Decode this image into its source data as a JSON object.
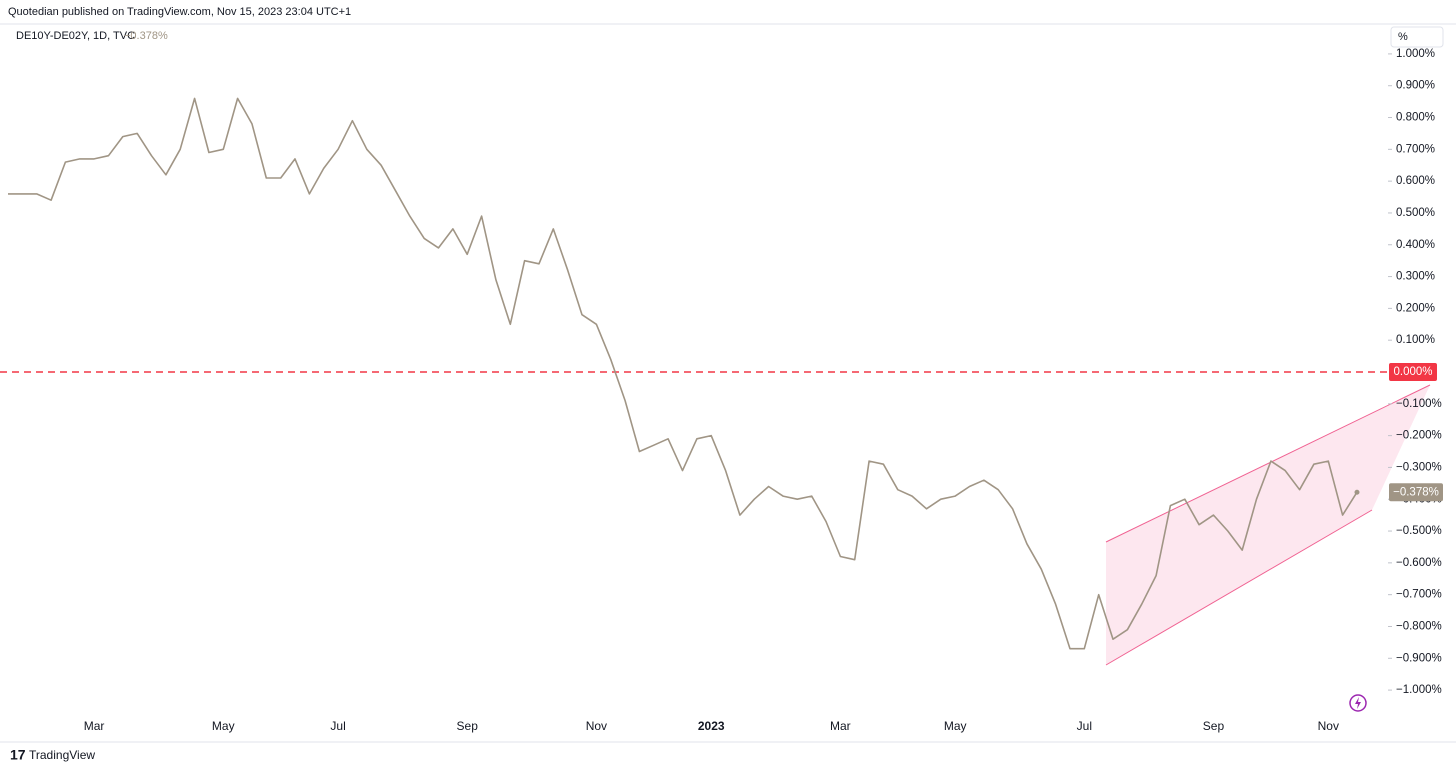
{
  "header": {
    "publisher": "Quotedian published on TradingView.com, Nov 15, 2023 23:04 UTC+1"
  },
  "footer": {
    "brand": "TradingView"
  },
  "chart_data": {
    "type": "line",
    "symbol": "DE10Y-DE02Y, 1D, TVC",
    "last_label": "−0.378%",
    "axis_unit": "%",
    "categories": [
      null,
      null,
      null,
      null,
      null,
      null,
      "Mar",
      null,
      null,
      null,
      null,
      null,
      null,
      null,
      null,
      "May",
      null,
      null,
      null,
      null,
      null,
      null,
      null,
      "Jul",
      null,
      null,
      null,
      null,
      null,
      null,
      null,
      null,
      "Sep",
      null,
      null,
      null,
      null,
      null,
      null,
      null,
      null,
      "Nov",
      null,
      null,
      null,
      null,
      null,
      null,
      null,
      "2023",
      null,
      null,
      null,
      null,
      null,
      null,
      null,
      null,
      "Mar",
      null,
      null,
      null,
      null,
      null,
      null,
      null,
      "May",
      null,
      null,
      null,
      null,
      null,
      null,
      null,
      null,
      "Jul",
      null,
      null,
      null,
      null,
      null,
      null,
      null,
      null,
      "Sep",
      null,
      null,
      null,
      null,
      null,
      null,
      null,
      "Nov",
      null,
      null
    ],
    "series": [
      {
        "name": "DE10Y-DE02Y",
        "color": "#a09585",
        "values": [
          0.56,
          0.56,
          0.56,
          0.54,
          0.66,
          0.67,
          0.67,
          0.68,
          0.74,
          0.75,
          0.68,
          0.62,
          0.7,
          0.86,
          0.69,
          0.7,
          0.86,
          0.78,
          0.61,
          0.61,
          0.67,
          0.56,
          0.64,
          0.7,
          0.79,
          0.7,
          0.65,
          0.57,
          0.49,
          0.42,
          0.39,
          0.45,
          0.37,
          0.49,
          0.29,
          0.15,
          0.35,
          0.34,
          0.45,
          0.32,
          0.18,
          0.15,
          0.04,
          -0.09,
          -0.25,
          -0.23,
          -0.21,
          -0.31,
          -0.21,
          -0.2,
          -0.31,
          -0.45,
          -0.4,
          -0.36,
          -0.39,
          -0.4,
          -0.39,
          -0.47,
          -0.58,
          -0.59,
          -0.28,
          -0.29,
          -0.37,
          -0.39,
          -0.43,
          -0.4,
          -0.39,
          -0.36,
          -0.34,
          -0.37,
          -0.43,
          -0.54,
          -0.62,
          -0.73,
          -0.87,
          -0.87,
          -0.7,
          -0.84,
          -0.81,
          -0.73,
          -0.64,
          -0.42,
          -0.4,
          -0.48,
          -0.45,
          -0.5,
          -0.56,
          -0.4,
          -0.28,
          -0.31,
          -0.37,
          -0.29,
          -0.28,
          -0.45,
          -0.378
        ]
      }
    ],
    "ylim": [
      -1.05,
      1.05
    ],
    "yticks": [
      {
        "value": 1,
        "label": "1.000%"
      },
      {
        "value": 0.9,
        "label": "0.900%"
      },
      {
        "value": 0.8,
        "label": "0.800%"
      },
      {
        "value": 0.7,
        "label": "0.700%"
      },
      {
        "value": 0.6,
        "label": "0.600%"
      },
      {
        "value": 0.5,
        "label": "0.500%"
      },
      {
        "value": 0.4,
        "label": "0.400%"
      },
      {
        "value": 0.3,
        "label": "0.300%"
      },
      {
        "value": 0.2,
        "label": "0.200%"
      },
      {
        "value": 0.1,
        "label": "0.100%"
      },
      {
        "value": -0.1,
        "label": "−0.100%"
      },
      {
        "value": -0.2,
        "label": "−0.200%"
      },
      {
        "value": -0.3,
        "label": "−0.300%"
      },
      {
        "value": -0.4,
        "label": "−0.400%"
      },
      {
        "value": -0.5,
        "label": "−0.500%"
      },
      {
        "value": -0.6,
        "label": "−0.600%"
      },
      {
        "value": -0.7,
        "label": "−0.700%"
      },
      {
        "value": -0.8,
        "label": "−0.800%"
      },
      {
        "value": -0.9,
        "label": "−0.900%"
      },
      {
        "value": -1,
        "label": "−1.000%"
      }
    ],
    "reference_line": {
      "value": 0,
      "label": "0.000%",
      "color": "#f23645"
    },
    "grid": false
  }
}
